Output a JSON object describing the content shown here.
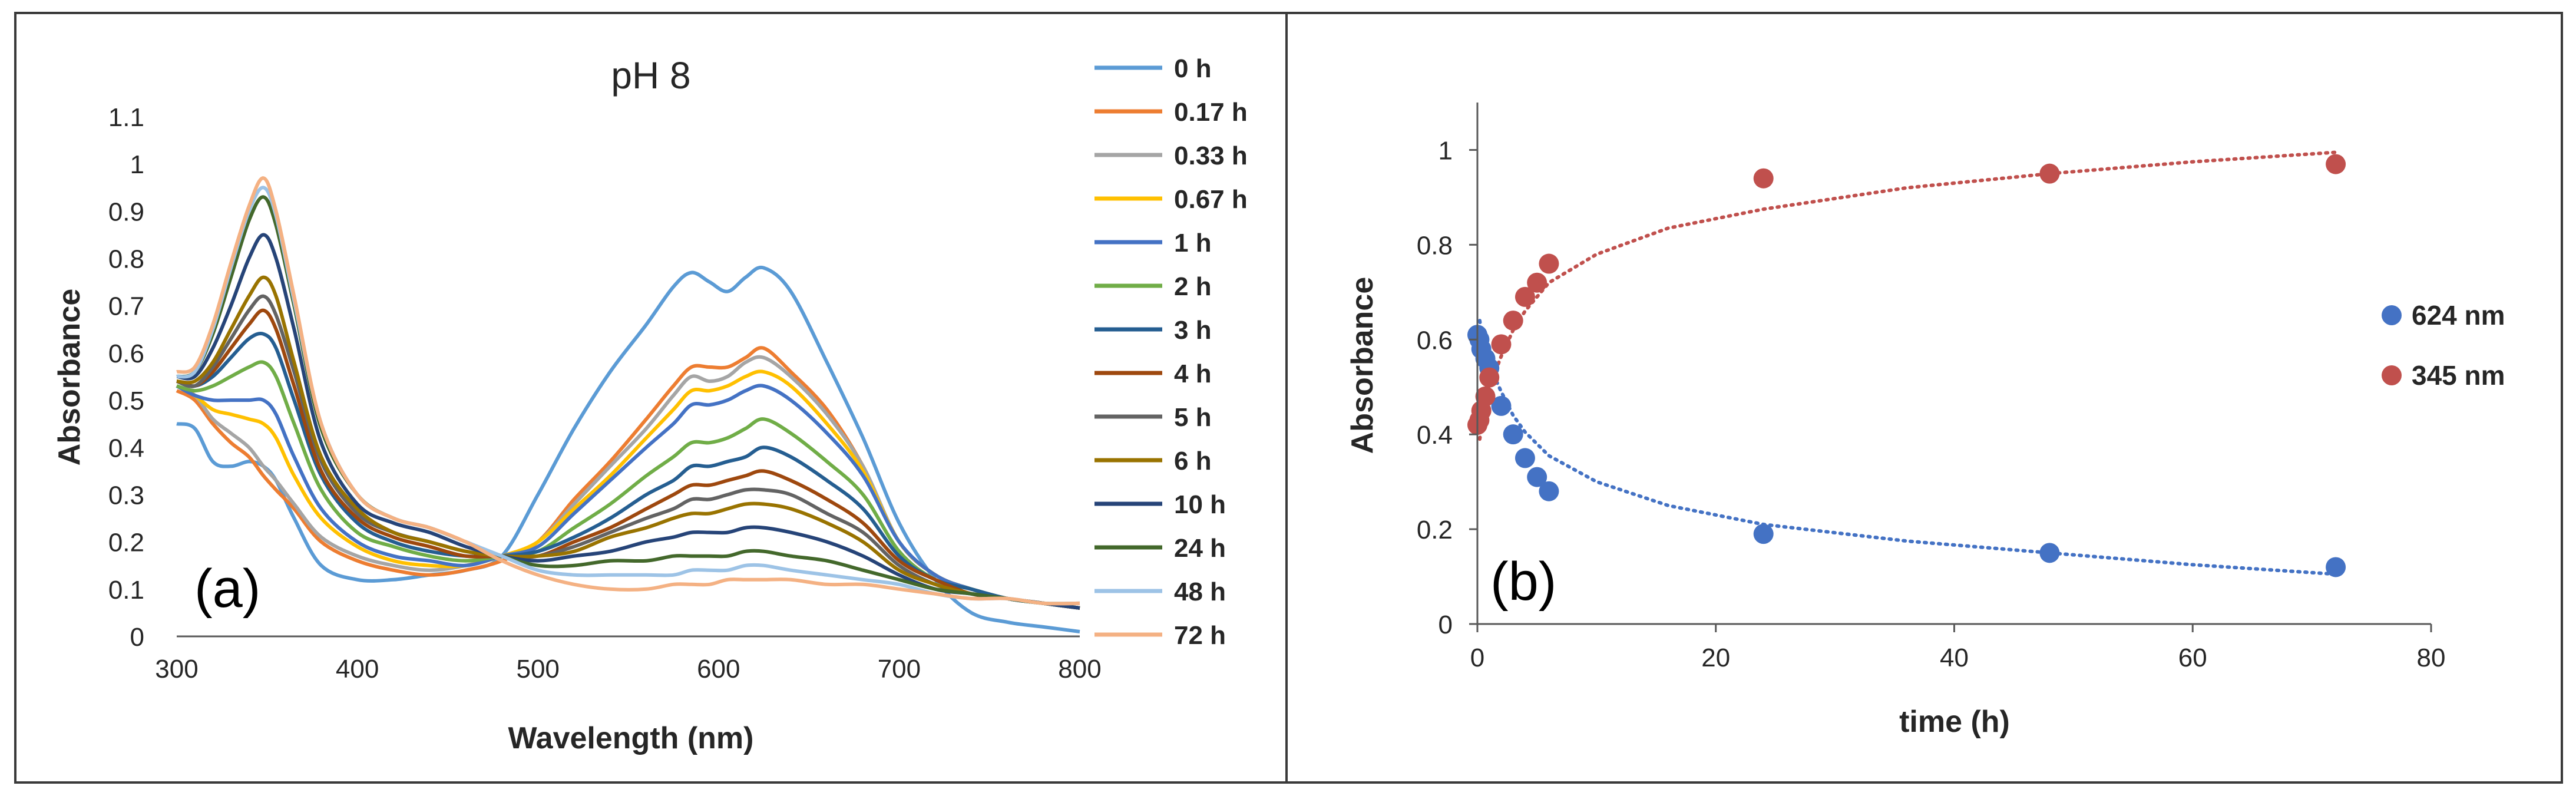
{
  "colors": {
    "frame": "#3a3a3a",
    "axis": "#595959",
    "text": "#262626",
    "blue": "#4472C4",
    "red": "#C0504D"
  },
  "chart_data": [
    {
      "type": "line",
      "title": "pH 8",
      "panel_label": "(a)",
      "xlabel": "Wavelength (nm)",
      "ylabel": "Absorbance",
      "xlim": [
        300,
        800
      ],
      "ylim": [
        0,
        1.1
      ],
      "x_ticks": [
        "300",
        "400",
        "500",
        "600",
        "700",
        "800"
      ],
      "y_ticks": [
        "0",
        "0.1",
        "0.2",
        "0.3",
        "0.4",
        "0.5",
        "0.6",
        "0.7",
        "0.8",
        "0.9",
        "1",
        "1.1"
      ],
      "grid": false,
      "legend_position": "right",
      "x": [
        300,
        310,
        320,
        330,
        340,
        348,
        355,
        365,
        380,
        400,
        420,
        440,
        460,
        480,
        500,
        520,
        540,
        560,
        575,
        585,
        595,
        605,
        615,
        625,
        640,
        660,
        680,
        700,
        720,
        740,
        760,
        780,
        800
      ],
      "series": [
        {
          "name": "0 h",
          "color": "#5B9BD5",
          "values": [
            0.45,
            0.44,
            0.37,
            0.36,
            0.37,
            0.36,
            0.33,
            0.25,
            0.15,
            0.12,
            0.12,
            0.13,
            0.14,
            0.17,
            0.3,
            0.44,
            0.56,
            0.66,
            0.74,
            0.77,
            0.75,
            0.73,
            0.76,
            0.78,
            0.73,
            0.58,
            0.42,
            0.24,
            0.12,
            0.05,
            0.03,
            0.02,
            0.01
          ]
        },
        {
          "name": "0.17 h",
          "color": "#ED7D31",
          "values": [
            0.52,
            0.5,
            0.45,
            0.41,
            0.38,
            0.34,
            0.31,
            0.27,
            0.2,
            0.16,
            0.14,
            0.13,
            0.14,
            0.16,
            0.2,
            0.29,
            0.37,
            0.46,
            0.53,
            0.57,
            0.57,
            0.57,
            0.59,
            0.61,
            0.56,
            0.48,
            0.36,
            0.2,
            0.13,
            0.1,
            0.08,
            0.07,
            0.06
          ]
        },
        {
          "name": "0.33 h",
          "color": "#A5A5A5",
          "values": [
            0.53,
            0.51,
            0.46,
            0.43,
            0.4,
            0.36,
            0.33,
            0.28,
            0.21,
            0.17,
            0.15,
            0.14,
            0.15,
            0.17,
            0.2,
            0.28,
            0.36,
            0.44,
            0.51,
            0.55,
            0.54,
            0.55,
            0.58,
            0.59,
            0.55,
            0.47,
            0.36,
            0.2,
            0.13,
            0.1,
            0.08,
            0.07,
            0.06
          ]
        },
        {
          "name": "0.67 h",
          "color": "#FFC000",
          "values": [
            0.53,
            0.51,
            0.48,
            0.47,
            0.46,
            0.45,
            0.42,
            0.34,
            0.25,
            0.19,
            0.16,
            0.15,
            0.15,
            0.17,
            0.2,
            0.27,
            0.34,
            0.42,
            0.48,
            0.52,
            0.52,
            0.53,
            0.55,
            0.56,
            0.53,
            0.45,
            0.35,
            0.2,
            0.13,
            0.1,
            0.08,
            0.07,
            0.06
          ]
        },
        {
          "name": "1 h",
          "color": "#4472C4",
          "values": [
            0.53,
            0.51,
            0.5,
            0.5,
            0.5,
            0.5,
            0.47,
            0.38,
            0.27,
            0.2,
            0.17,
            0.16,
            0.15,
            0.17,
            0.19,
            0.26,
            0.33,
            0.4,
            0.45,
            0.49,
            0.49,
            0.5,
            0.52,
            0.53,
            0.5,
            0.43,
            0.34,
            0.2,
            0.13,
            0.1,
            0.08,
            0.07,
            0.06
          ]
        },
        {
          "name": "2 h",
          "color": "#70AD47",
          "values": [
            0.53,
            0.52,
            0.53,
            0.55,
            0.57,
            0.58,
            0.55,
            0.45,
            0.31,
            0.22,
            0.19,
            0.17,
            0.16,
            0.17,
            0.18,
            0.23,
            0.28,
            0.34,
            0.38,
            0.41,
            0.41,
            0.42,
            0.44,
            0.46,
            0.43,
            0.37,
            0.3,
            0.18,
            0.12,
            0.1,
            0.08,
            0.07,
            0.06
          ]
        },
        {
          "name": "3 h",
          "color": "#255E91",
          "values": [
            0.54,
            0.53,
            0.55,
            0.59,
            0.63,
            0.64,
            0.61,
            0.5,
            0.34,
            0.24,
            0.2,
            0.18,
            0.17,
            0.17,
            0.18,
            0.21,
            0.25,
            0.3,
            0.33,
            0.36,
            0.36,
            0.37,
            0.38,
            0.4,
            0.38,
            0.33,
            0.27,
            0.17,
            0.12,
            0.1,
            0.08,
            0.07,
            0.06
          ]
        },
        {
          "name": "4 h",
          "color": "#9E480E",
          "values": [
            0.54,
            0.53,
            0.56,
            0.61,
            0.66,
            0.69,
            0.65,
            0.53,
            0.35,
            0.25,
            0.21,
            0.19,
            0.17,
            0.17,
            0.17,
            0.2,
            0.23,
            0.27,
            0.3,
            0.32,
            0.32,
            0.33,
            0.34,
            0.35,
            0.33,
            0.29,
            0.24,
            0.16,
            0.12,
            0.09,
            0.08,
            0.07,
            0.06
          ]
        },
        {
          "name": "5 h",
          "color": "#636363",
          "values": [
            0.54,
            0.53,
            0.57,
            0.63,
            0.69,
            0.72,
            0.68,
            0.56,
            0.37,
            0.26,
            0.22,
            0.2,
            0.18,
            0.17,
            0.17,
            0.19,
            0.22,
            0.25,
            0.27,
            0.29,
            0.29,
            0.3,
            0.31,
            0.31,
            0.3,
            0.26,
            0.22,
            0.15,
            0.11,
            0.09,
            0.08,
            0.07,
            0.06
          ]
        },
        {
          "name": "6 h",
          "color": "#997300",
          "values": [
            0.54,
            0.54,
            0.58,
            0.65,
            0.72,
            0.76,
            0.72,
            0.58,
            0.38,
            0.27,
            0.22,
            0.2,
            0.18,
            0.17,
            0.17,
            0.18,
            0.21,
            0.23,
            0.25,
            0.26,
            0.26,
            0.27,
            0.28,
            0.28,
            0.27,
            0.24,
            0.2,
            0.14,
            0.11,
            0.09,
            0.08,
            0.07,
            0.06
          ]
        },
        {
          "name": "10 h",
          "color": "#264478",
          "values": [
            0.55,
            0.55,
            0.61,
            0.7,
            0.8,
            0.85,
            0.8,
            0.65,
            0.41,
            0.28,
            0.24,
            0.22,
            0.19,
            0.17,
            0.16,
            0.17,
            0.18,
            0.2,
            0.21,
            0.22,
            0.22,
            0.22,
            0.23,
            0.23,
            0.22,
            0.2,
            0.17,
            0.13,
            0.1,
            0.09,
            0.08,
            0.07,
            0.06
          ]
        },
        {
          "name": "24 h",
          "color": "#43682B",
          "values": [
            0.55,
            0.56,
            0.64,
            0.76,
            0.88,
            0.93,
            0.87,
            0.7,
            0.44,
            0.3,
            0.25,
            0.23,
            0.2,
            0.17,
            0.15,
            0.15,
            0.16,
            0.16,
            0.17,
            0.17,
            0.17,
            0.17,
            0.18,
            0.18,
            0.17,
            0.16,
            0.14,
            0.12,
            0.1,
            0.09,
            0.08,
            0.07,
            0.07
          ]
        },
        {
          "name": "48 h",
          "color": "#9DC3E6",
          "values": [
            0.55,
            0.56,
            0.65,
            0.78,
            0.9,
            0.95,
            0.89,
            0.71,
            0.45,
            0.3,
            0.25,
            0.23,
            0.2,
            0.17,
            0.14,
            0.13,
            0.13,
            0.13,
            0.13,
            0.14,
            0.14,
            0.14,
            0.15,
            0.15,
            0.14,
            0.13,
            0.12,
            0.11,
            0.09,
            0.08,
            0.08,
            0.07,
            0.07
          ]
        },
        {
          "name": "72 h",
          "color": "#F4B183",
          "values": [
            0.56,
            0.57,
            0.66,
            0.79,
            0.91,
            0.97,
            0.9,
            0.72,
            0.45,
            0.3,
            0.25,
            0.23,
            0.2,
            0.16,
            0.13,
            0.11,
            0.1,
            0.1,
            0.11,
            0.11,
            0.11,
            0.12,
            0.12,
            0.12,
            0.12,
            0.11,
            0.11,
            0.1,
            0.09,
            0.08,
            0.08,
            0.07,
            0.07
          ]
        }
      ]
    },
    {
      "type": "scatter",
      "panel_label": "(b)",
      "xlabel": "time (h)",
      "ylabel": "Absorbance",
      "xlim": [
        0,
        80
      ],
      "ylim": [
        0,
        1.1
      ],
      "x_ticks": [
        "0",
        "20",
        "40",
        "60",
        "80"
      ],
      "y_ticks": [
        "0",
        "0.2",
        "0.4",
        "0.6",
        "0.8",
        "1"
      ],
      "grid": false,
      "legend_position": "right",
      "series": [
        {
          "name": "624 nm",
          "color": "#4472C4",
          "x": [
            0,
            0.17,
            0.33,
            0.67,
            1,
            2,
            3,
            4,
            5,
            6,
            24,
            48,
            72
          ],
          "y": [
            0.61,
            0.6,
            0.58,
            0.56,
            0.54,
            0.46,
            0.4,
            0.35,
            0.31,
            0.28,
            0.19,
            0.15,
            0.12
          ],
          "trend": [
            [
              0.2,
              0.64
            ],
            [
              0.5,
              0.59
            ],
            [
              1,
              0.545
            ],
            [
              2,
              0.49
            ],
            [
              3,
              0.44
            ],
            [
              4,
              0.405
            ],
            [
              6,
              0.355
            ],
            [
              10,
              0.3
            ],
            [
              16,
              0.25
            ],
            [
              24,
              0.21
            ],
            [
              36,
              0.175
            ],
            [
              48,
              0.15
            ],
            [
              60,
              0.125
            ],
            [
              72,
              0.105
            ]
          ]
        },
        {
          "name": "345 nm",
          "color": "#C0504D",
          "x": [
            0,
            0.17,
            0.33,
            0.67,
            1,
            2,
            3,
            4,
            5,
            6,
            24,
            48,
            72
          ],
          "y": [
            0.42,
            0.43,
            0.45,
            0.48,
            0.52,
            0.59,
            0.64,
            0.69,
            0.72,
            0.76,
            0.94,
            0.95,
            0.97
          ],
          "trend": [
            [
              0.2,
              0.39
            ],
            [
              0.5,
              0.44
            ],
            [
              1,
              0.5
            ],
            [
              2,
              0.565
            ],
            [
              3,
              0.62
            ],
            [
              4,
              0.66
            ],
            [
              6,
              0.72
            ],
            [
              10,
              0.78
            ],
            [
              16,
              0.835
            ],
            [
              24,
              0.875
            ],
            [
              36,
              0.92
            ],
            [
              48,
              0.95
            ],
            [
              60,
              0.975
            ],
            [
              72,
              0.995
            ]
          ]
        }
      ]
    }
  ]
}
